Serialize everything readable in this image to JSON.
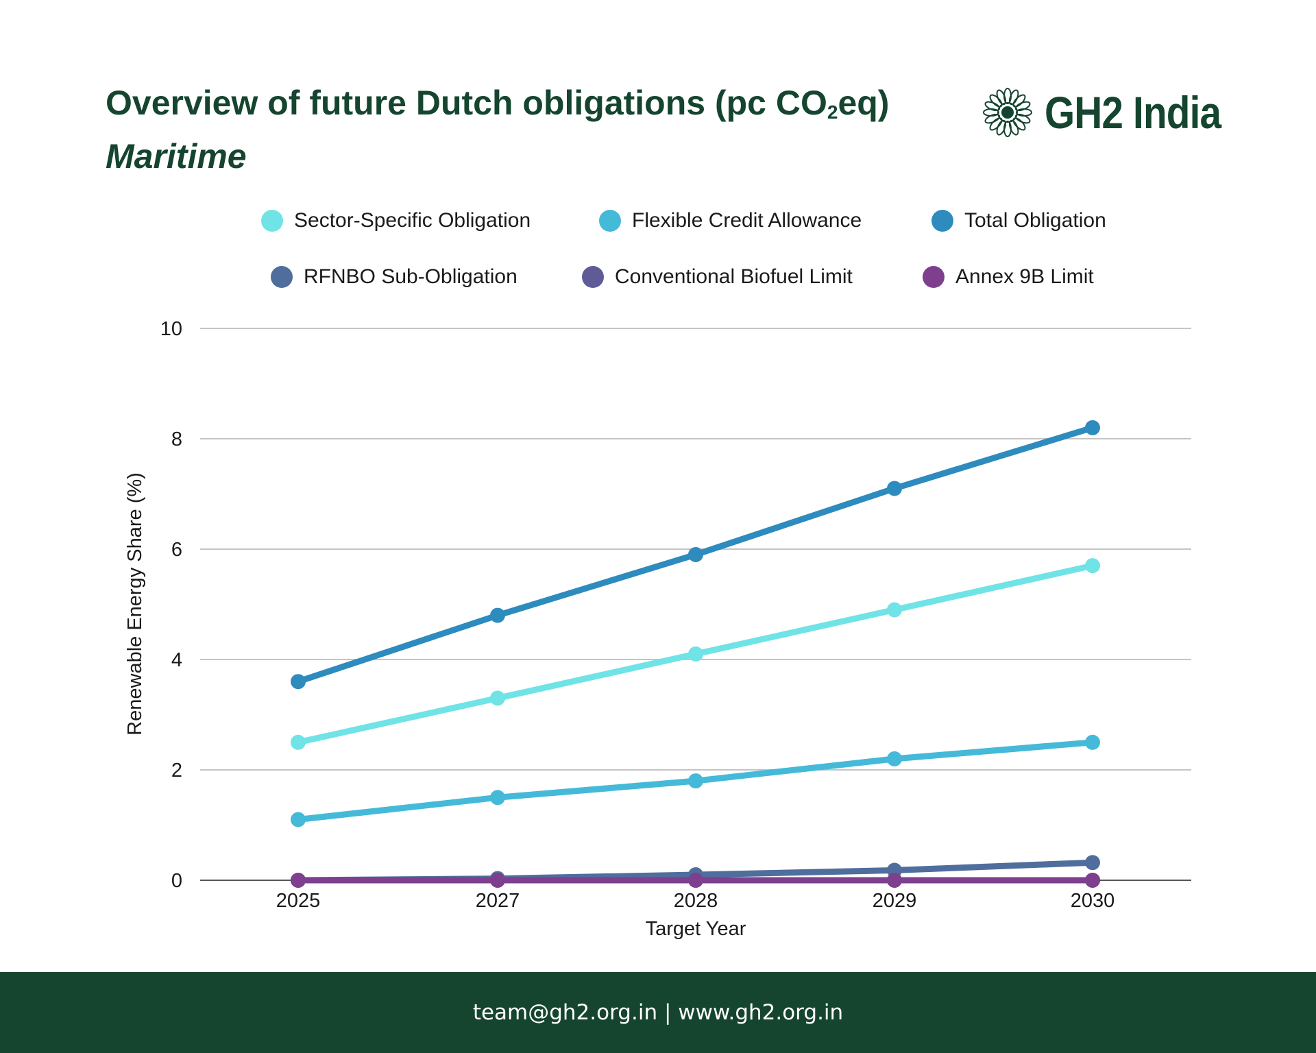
{
  "header": {
    "title_main": "Overview of future Dutch obligations (pc CO",
    "title_sub": "2",
    "title_end": "eq)",
    "subtitle": "Maritime"
  },
  "logo": {
    "text": "GH2 India",
    "icon": "mandala-flower-icon"
  },
  "footer": {
    "contact": "team@gh2.org.in | www.gh2.org.in"
  },
  "chart_data": {
    "type": "line",
    "title": "Overview of future Dutch obligations (pc CO₂eq)",
    "subtitle": "Maritime",
    "xlabel": "Target Year",
    "ylabel": "Renewable Energy Share (%)",
    "ylim": [
      0,
      10
    ],
    "yticks": [
      "0",
      "2",
      "4",
      "6",
      "8",
      "10"
    ],
    "grid": true,
    "legend_position": "top",
    "categories": [
      "2025",
      "2027",
      "2028",
      "2029",
      "2030"
    ],
    "series": [
      {
        "name": "Sector-Specific Obligation",
        "color": "#6fe3e6",
        "values": [
          2.5,
          3.3,
          4.1,
          4.9,
          5.7
        ]
      },
      {
        "name": "Flexible Credit Allowance",
        "color": "#45b9d8",
        "values": [
          1.1,
          1.5,
          1.8,
          2.2,
          2.5
        ]
      },
      {
        "name": "Total Obligation",
        "color": "#2e8bbd",
        "values": [
          3.6,
          4.8,
          5.9,
          7.1,
          8.2
        ]
      },
      {
        "name": "RFNBO Sub-Obligation",
        "color": "#4f6e9d",
        "values": [
          0.0,
          0.03,
          0.1,
          0.18,
          0.32
        ]
      },
      {
        "name": "Conventional Biofuel Limit",
        "color": "#5f5b97",
        "values": [
          0,
          0,
          0,
          0,
          0
        ]
      },
      {
        "name": "Annex 9B Limit",
        "color": "#7d3f8e",
        "values": [
          0,
          0,
          0,
          0,
          0
        ]
      }
    ]
  }
}
